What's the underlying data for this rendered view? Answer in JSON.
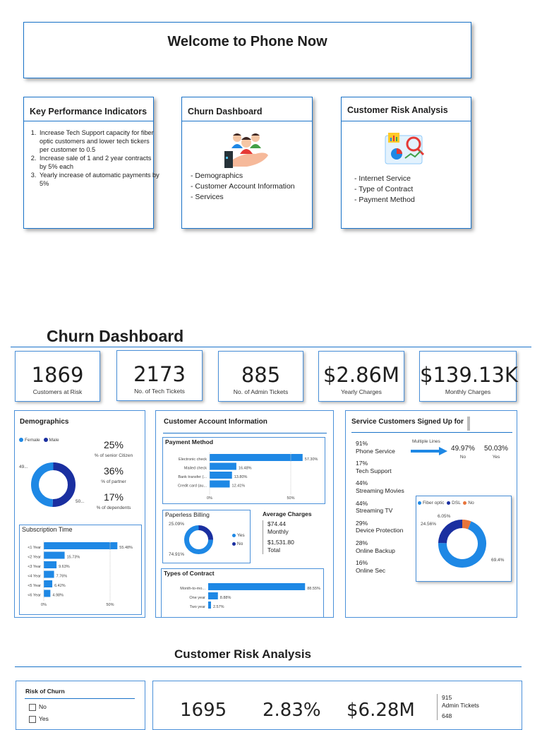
{
  "welcome": {
    "title": "Welcome to Phone Now"
  },
  "nav": {
    "kpi": {
      "title": "Key Performance Indicators",
      "items": [
        "Increase Tech Support capacity for fiber optic customers and lower tech tickers per customer to 0.5",
        "Increase sale of 1 and 2 year contracts by 5% each",
        "Yearly increase of automatic payments by 5%"
      ]
    },
    "churn": {
      "title": "Churn Dashboard",
      "icon": "people-hand-icon",
      "items": [
        "- Demographics",
        "- Customer Account Information",
        "- Services"
      ]
    },
    "risk": {
      "title": "Customer Risk Analysis",
      "icon": "analytics-icon",
      "items": [
        "- Internet Service",
        "- Type of Contract",
        "- Payment Method"
      ]
    }
  },
  "churn_dashboard": {
    "title": "Churn Dashboard",
    "stats": [
      {
        "value": "1869",
        "label": "Customers at Risk"
      },
      {
        "value": "2173",
        "label": "No. of Tech Tickets"
      },
      {
        "value": "885",
        "label": "No. of Admin Tickets"
      },
      {
        "value": "$2.86M",
        "label": "Yearly Charges"
      },
      {
        "value": "$139.13K",
        "label": "Monthly Charges"
      }
    ],
    "demographics": {
      "title": "Demographics",
      "legend": [
        "Female",
        "Male"
      ],
      "donut_labels": [
        "49...",
        "50..."
      ],
      "metrics": [
        {
          "value": "25%",
          "label": "% of senior Citizen"
        },
        {
          "value": "36%",
          "label": "% of partner"
        },
        {
          "value": "17%",
          "label": "% of dependents"
        }
      ]
    },
    "account": {
      "title": "Customer Account Information"
    },
    "services": {
      "title": "Service Customers Signed Up for",
      "items": [
        {
          "pct": "91%",
          "name": "Phone Service"
        },
        {
          "pct": "17%",
          "name": "Tech Support"
        },
        {
          "pct": "44%",
          "name": "Streaming Movies"
        },
        {
          "pct": "44%",
          "name": "Streaming TV"
        },
        {
          "pct": "29%",
          "name": "Device Protection"
        },
        {
          "pct": "28%",
          "name": "Online Backup"
        },
        {
          "pct": "16%",
          "name": "Online Sec"
        }
      ],
      "multiple_lines": {
        "title": "Multiple Lines",
        "no_pct": "49.97%",
        "no_label": "No",
        "yes_pct": "50.03%",
        "yes_label": "Yes"
      }
    },
    "average_charges": {
      "title": "Average Charges",
      "monthly_value": "$74.44",
      "monthly_label": "Monthly",
      "total_value": "$1,531.80",
      "total_label": "Total"
    }
  },
  "risk_analysis": {
    "title": "Customer Risk Analysis",
    "slicer": {
      "title": "Risk of Churn",
      "options": [
        "No",
        "Yes"
      ]
    },
    "stats": [
      "1695",
      "2.83%",
      "$6.28M"
    ],
    "side": [
      {
        "value": "915",
        "label": "Admin Tickets"
      },
      {
        "value": "648",
        "label": ""
      }
    ]
  },
  "colors": {
    "accent": "#1a73c9",
    "bar": "#1e88e5",
    "dark": "#1a2fa0",
    "orange": "#e8743b"
  },
  "chart_data": [
    {
      "type": "pie",
      "title": "Demographics",
      "series": [
        {
          "name": "Female",
          "value": 49.5
        },
        {
          "name": "Male",
          "value": 50.5
        }
      ],
      "labels": [
        "Female",
        "Male"
      ],
      "data_labels": [
        "49...",
        "50..."
      ],
      "legend": "top-left"
    },
    {
      "type": "bar",
      "title": "Subscription Time",
      "categories": [
        "<1 Year",
        "<2 Year",
        "<3 Year",
        "<4 Year",
        "<5 Year",
        "<6 Year"
      ],
      "values": [
        55.48,
        15.73,
        9.63,
        7.76,
        6.42,
        4.98
      ],
      "data_labels": [
        "55.48%",
        "15.73%",
        "9.63%",
        "7.76%",
        "6.42%",
        "4.98%"
      ],
      "xticks": [
        "0%",
        "50%"
      ],
      "orientation": "horizontal"
    },
    {
      "type": "bar",
      "title": "Payment Method",
      "categories": [
        "Electronic check",
        "Mailed check",
        "Bank transfer (...",
        "Credit card (au..."
      ],
      "values": [
        57.3,
        16.48,
        13.8,
        12.41
      ],
      "data_labels": [
        "57.30%",
        "16.48%",
        "13.80%",
        "12.41%"
      ],
      "xticks": [
        "0%",
        "50%"
      ],
      "orientation": "horizontal"
    },
    {
      "type": "pie",
      "title": "Paperless Billing",
      "series": [
        {
          "name": "Yes",
          "value": 74.91
        },
        {
          "name": "No",
          "value": 25.09
        }
      ],
      "labels": [
        "Yes",
        "No"
      ],
      "data_labels": [
        "74.91%",
        "25.09%"
      ],
      "legend": "right"
    },
    {
      "type": "bar",
      "title": "Types of Contract",
      "categories": [
        "Month-to-mo...",
        "One year",
        "Two year"
      ],
      "values": [
        88.55,
        8.88,
        2.57
      ],
      "data_labels": [
        "88.55%",
        "8.88%",
        "2.57%"
      ],
      "orientation": "horizontal"
    },
    {
      "type": "pie",
      "title": "",
      "series": [
        {
          "name": "Fiber optic",
          "value": 69.4
        },
        {
          "name": "DSL",
          "value": 24.56
        },
        {
          "name": "No",
          "value": 6.05
        }
      ],
      "labels": [
        "Fiber optic",
        "DSL",
        "No"
      ],
      "data_labels": [
        "69.4%",
        "24.56%",
        "6.05%"
      ],
      "legend": "top"
    }
  ]
}
